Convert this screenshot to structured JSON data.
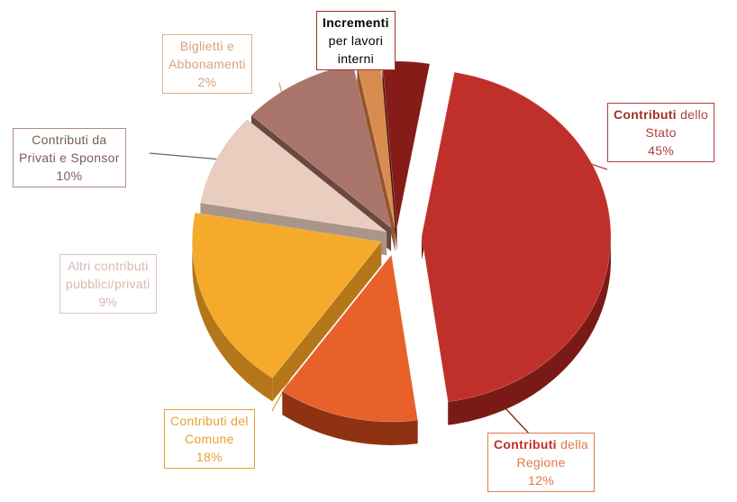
{
  "chart_data": {
    "type": "pie",
    "title": "",
    "slices": [
      {
        "key": "stato",
        "name": "Contributi dello Stato",
        "value": 45,
        "color": "#c0302a",
        "side": "#7a1a16"
      },
      {
        "key": "regione",
        "name": "Contributi della Regione",
        "value": 12,
        "color": "#e8612a",
        "side": "#8e3212"
      },
      {
        "key": "comune",
        "name": "Contributi del Comune",
        "value": 18,
        "color": "#f5aa2c",
        "side": "#b5761a"
      },
      {
        "key": "altri",
        "name": "Altri contributi pubblici/privati",
        "value": 9,
        "color": "#e9cdbf",
        "side": "#a99589"
      },
      {
        "key": "privati",
        "name": "Contributi da Privati e Sponsor",
        "value": 10,
        "color": "#a9756b",
        "side": "#6c4740"
      },
      {
        "key": "biglietti",
        "name": "Biglietti e Abbonamenti",
        "value": 2,
        "color": "#d98c4f",
        "side": "#96552a"
      },
      {
        "key": "incrementi",
        "name": "Incrementi per lavori interni",
        "value": 4,
        "color": "#861c18",
        "side": "#4d0e0b"
      }
    ]
  },
  "labels": {
    "stato": {
      "bold": "Contributi",
      "rest": " dello",
      "line2": "Stato",
      "pct": "45%",
      "text_color": "#a0302a",
      "border": "#b04040"
    },
    "regione": {
      "bold": "Contributi",
      "rest": " della",
      "line2": "Regione",
      "pct": "12%",
      "text_color": "#d9662a",
      "border": "#e07a4a"
    },
    "comune": {
      "line1": "Contributi del",
      "line2": "Comune",
      "pct": "18%",
      "text_color": "#e9a030",
      "border": "#e9a030"
    },
    "altri": {
      "line1": "Altri contributi",
      "line2": "pubblici/privati",
      "pct": "9%",
      "text_color": "#d8b8b0",
      "border": "#dcc4be"
    },
    "privati": {
      "line1": "Contributi da",
      "line2": "Privati e Sponsor",
      "pct": "10%",
      "text_color": "#7a5c58",
      "border": "#b08b86"
    },
    "biglietti": {
      "line1": "Biglietti e",
      "line2": "Abbonamenti",
      "pct": "2%",
      "text_color": "#d9a27a",
      "border": "#e2b08a"
    },
    "incrementi": {
      "bold": "Incrementi",
      "line2": "per lavori",
      "line3": "interni",
      "text_color": "#3a2a28",
      "border": "#a0302a"
    }
  }
}
